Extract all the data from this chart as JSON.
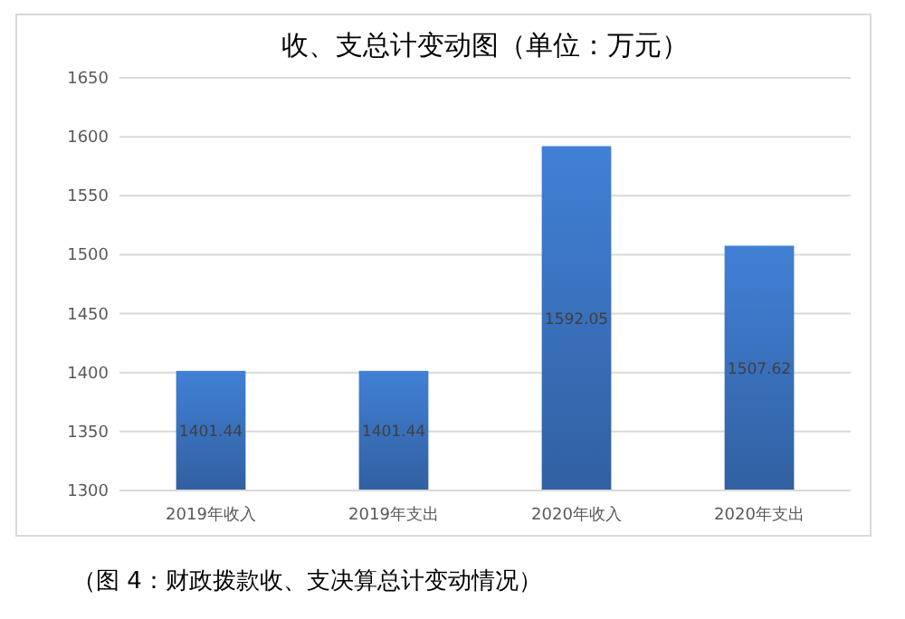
{
  "chart_data": {
    "type": "bar",
    "title": "收、支总计变动图（单位：万元）",
    "categories": [
      "2019年收入",
      "2019年支出",
      "2020年收入",
      "2020年支出"
    ],
    "values": [
      1401.44,
      1401.44,
      1592.05,
      1507.62
    ],
    "color": "#3a73c0",
    "ylim": [
      1300,
      1650
    ],
    "yticks": [
      1300,
      1350,
      1400,
      1450,
      1500,
      1550,
      1600,
      1650
    ],
    "grid": "y",
    "data_labels": true,
    "annotations": [
      "（图 4：财政拨款收、支决算总计变动情况）"
    ]
  }
}
